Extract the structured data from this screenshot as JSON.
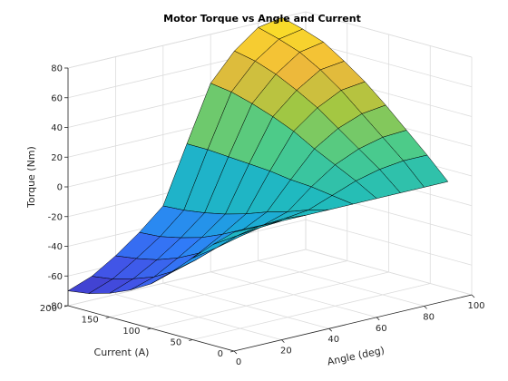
{
  "chart_data": {
    "type": "surface",
    "title": "Motor Torque vs Angle and Current",
    "xlabel": "Angle (deg)",
    "ylabel": "Current (A)",
    "zlabel": "Torque (Nm)",
    "xlim": [
      0,
      100
    ],
    "ylim": [
      0,
      200
    ],
    "zlim": [
      -80,
      80
    ],
    "x_ticks": [
      "0",
      "20",
      "40",
      "60",
      "80",
      "100"
    ],
    "y_ticks": [
      "0",
      "50",
      "100",
      "150",
      "200"
    ],
    "z_ticks": [
      "-80",
      "-60",
      "-40",
      "-20",
      "0",
      "20",
      "40",
      "60",
      "80"
    ],
    "grid": true,
    "colormap": [
      "#3e26a8",
      "#4350e5",
      "#2f7ef9",
      "#1ca7dc",
      "#21bcbb",
      "#4ccb8a",
      "#a2c742",
      "#f2b83a",
      "#fbe326"
    ],
    "edge_color": "#000000",
    "angle": [
      0,
      10,
      20,
      30,
      40,
      50,
      60,
      70,
      80,
      90
    ],
    "current": [
      0,
      25,
      50,
      75,
      100,
      125,
      150,
      175,
      200
    ],
    "torque": [
      [
        0,
        0,
        0,
        0,
        0,
        0,
        0,
        0,
        0,
        0
      ],
      [
        -12,
        -10,
        -8,
        -6,
        -4,
        2,
        8,
        12,
        14,
        14
      ],
      [
        -25,
        -22,
        -18,
        -14,
        -9,
        4,
        15,
        22,
        26,
        27
      ],
      [
        -38,
        -34,
        -28,
        -21,
        -13,
        5,
        22,
        32,
        38,
        40
      ],
      [
        -50,
        -45,
        -37,
        -28,
        -18,
        7,
        30,
        42,
        50,
        52
      ],
      [
        -58,
        -53,
        -44,
        -34,
        -22,
        8,
        36,
        50,
        60,
        62
      ],
      [
        -64,
        -58,
        -49,
        -38,
        -25,
        9,
        41,
        57,
        68,
        71
      ],
      [
        -68,
        -62,
        -52,
        -41,
        -27,
        10,
        45,
        62,
        73,
        76
      ],
      [
        -70,
        -64,
        -54,
        -42,
        -28,
        10,
        47,
        65,
        77,
        80
      ]
    ]
  }
}
